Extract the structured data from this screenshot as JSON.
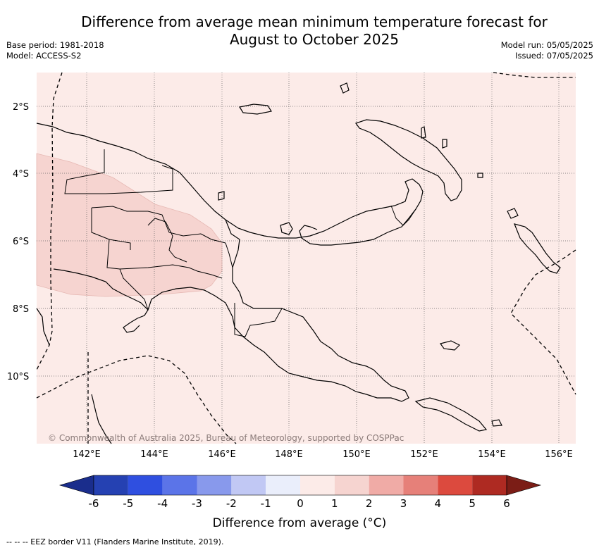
{
  "title_line1": "Difference from average mean minimum temperature forecast for",
  "title_line2": "August to October 2025",
  "base_period": "Base period: 1981-2018",
  "model": "Model: ACCESS-S2",
  "model_run": "Model run: 05/05/2025",
  "issued": "Issued: 07/05/2025",
  "copyright": "© Commonwealth of Australia 2025, Bureau of Meteorology, supported by COSPPac",
  "lat_labels": [
    "2°S",
    "4°S",
    "6°S",
    "8°S",
    "10°S"
  ],
  "lon_labels": [
    "142°E",
    "144°E",
    "146°E",
    "148°E",
    "150°E",
    "152°E",
    "154°E",
    "156°E"
  ],
  "colorbar": {
    "label": "Difference from average (°C)",
    "ticks": [
      "-6",
      "-5",
      "-4",
      "-3",
      "-2",
      "-1",
      "0",
      "1",
      "2",
      "3",
      "4",
      "5",
      "6"
    ],
    "colors": [
      "#1a2d8c",
      "#2541b2",
      "#2f4fe0",
      "#5b74e8",
      "#8899ec",
      "#c1c8f4",
      "#eaeefb",
      "#fcebe8",
      "#f6d4d0",
      "#f0aba6",
      "#e68079",
      "#dc4a3e",
      "#ae2a22",
      "#7b1d16"
    ]
  },
  "forecast_shading": {
    "dominant_anomaly_c": "0 to 1",
    "western_region_anomaly_c": "1 to 2"
  },
  "footer": "--  --  -- EEZ border V11 (Flanders Marine Institute, 2019)."
}
